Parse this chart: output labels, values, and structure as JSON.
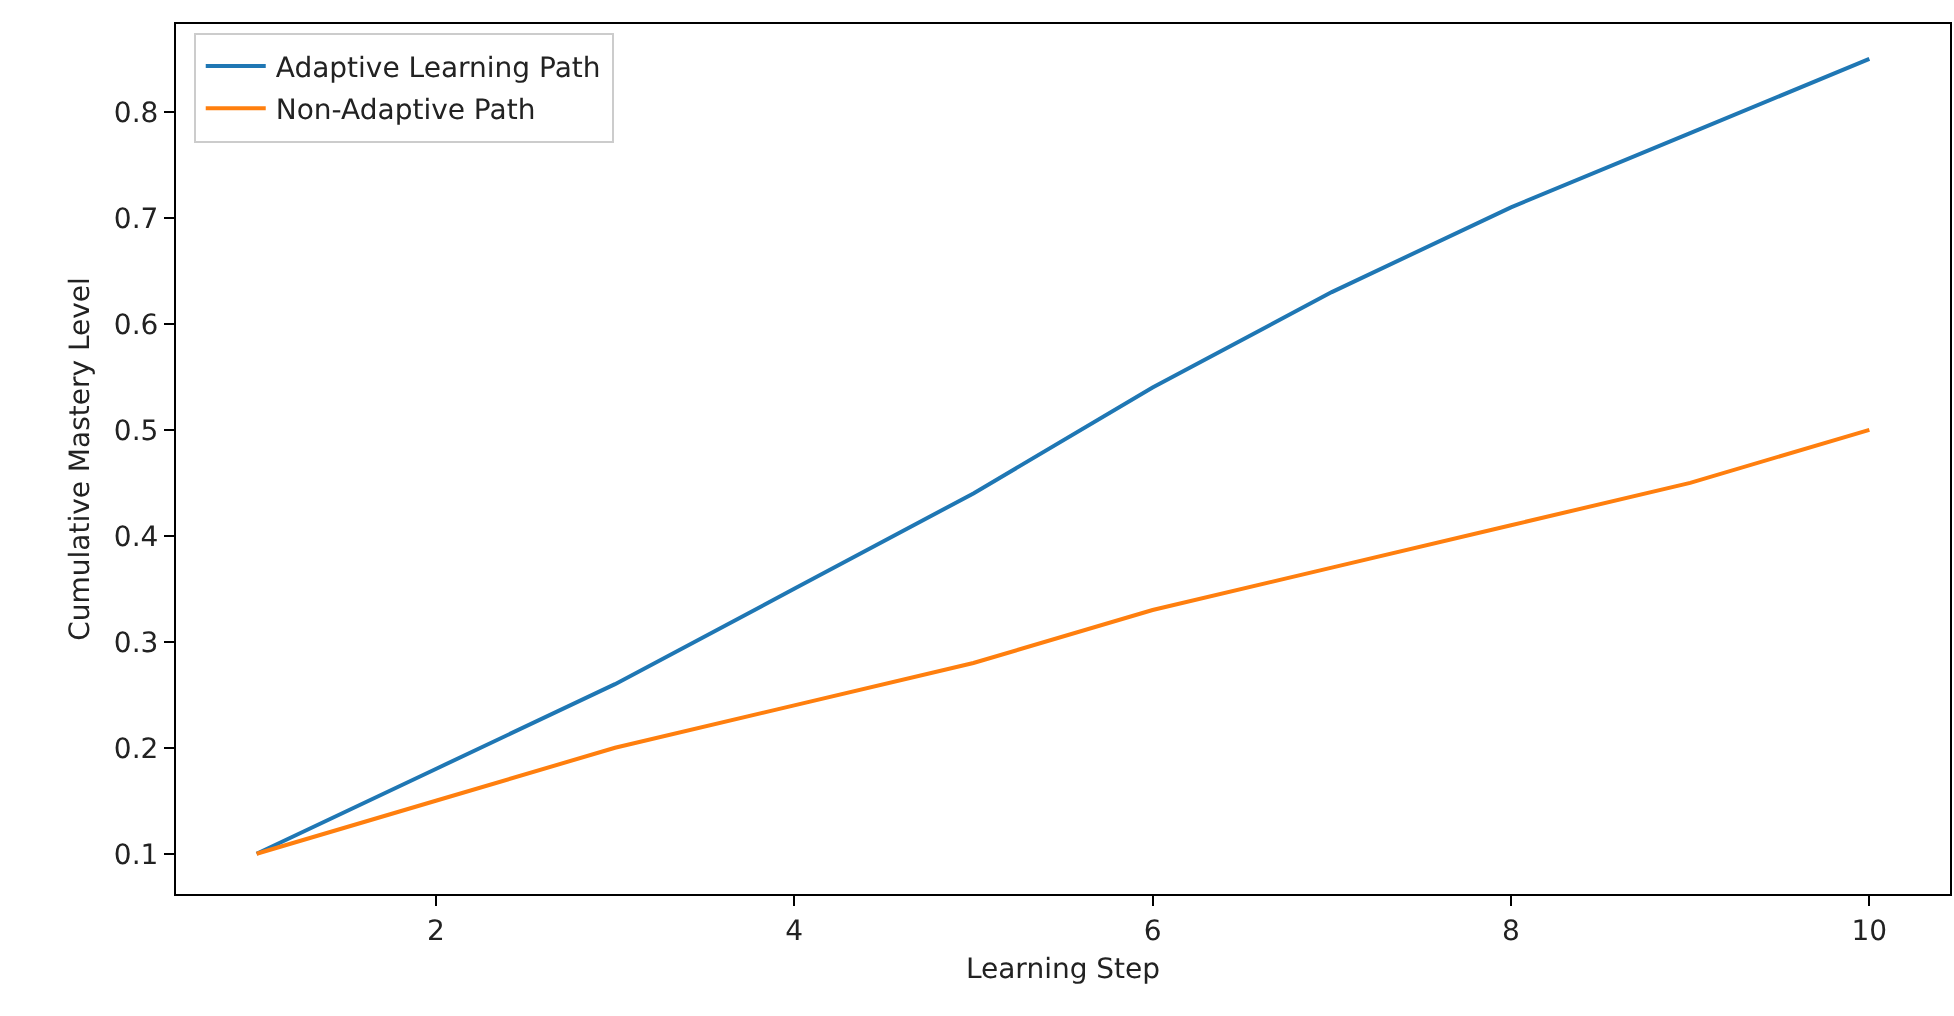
{
  "chart_data": {
    "type": "line",
    "xlabel": "Learning Step",
    "ylabel": "Cumulative Mastery Level",
    "x": [
      1,
      2,
      3,
      4,
      5,
      6,
      7,
      8,
      9,
      10
    ],
    "series": [
      {
        "name": "Adaptive Learning Path",
        "color": "#1f77b4",
        "values": [
          0.1,
          0.18,
          0.26,
          0.35,
          0.44,
          0.54,
          0.63,
          0.71,
          0.78,
          0.85
        ]
      },
      {
        "name": "Non-Adaptive Path",
        "color": "#ff7f0e",
        "values": [
          0.1,
          0.15,
          0.2,
          0.24,
          0.28,
          0.33,
          0.37,
          0.41,
          0.45,
          0.5
        ]
      }
    ],
    "xlim": [
      0.55,
      10.45
    ],
    "ylim": [
      0.062,
      0.883
    ],
    "xticks": [
      2,
      4,
      6,
      8,
      10
    ],
    "yticks": [
      0.1,
      0.2,
      0.3,
      0.4,
      0.5,
      0.6,
      0.7,
      0.8
    ],
    "grid": false,
    "legend": "top left",
    "marker": "none",
    "line_style": "solid"
  }
}
